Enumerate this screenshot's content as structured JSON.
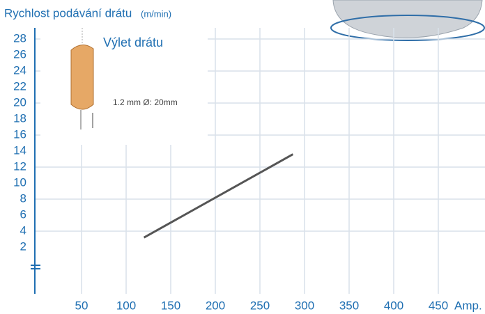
{
  "chart_data": {
    "type": "line",
    "title": "Rychlost podávání drátu",
    "y_unit": "(m/min)",
    "x_unit": "Amp.",
    "annotations": [
      "Výlet drátu",
      "1.2 mm Ø: 20mm"
    ],
    "x": [
      120,
      287
    ],
    "series": [
      {
        "color": "#555555",
        "values": [
          3.2,
          13.6
        ]
      }
    ],
    "xlim": [
      0,
      500
    ],
    "xticks": [
      50,
      100,
      150,
      200,
      250,
      300,
      350,
      400,
      450
    ],
    "ylim": [
      0,
      30
    ],
    "yticks": [
      2,
      4,
      6,
      8,
      10,
      12,
      14,
      16,
      18,
      20,
      22,
      24,
      26,
      28
    ],
    "grid": true
  }
}
